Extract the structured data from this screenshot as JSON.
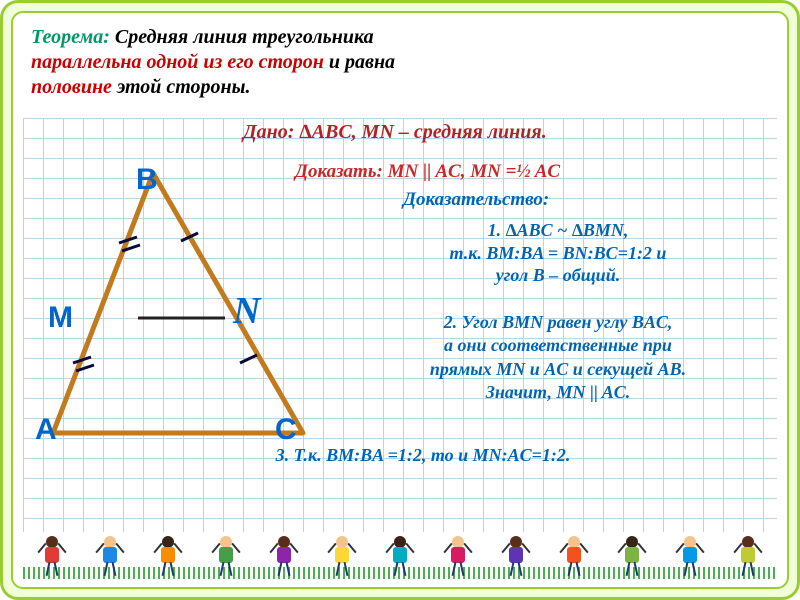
{
  "theorem": {
    "label": "Теорема:",
    "text_part1": "  Средняя линия треугольника ",
    "parallel": "параллельна одной из его сторон",
    "text_part2": " и равна ",
    "half": "половине",
    "text_part3": " этой стороны."
  },
  "given": "Дано: ∆ABC,  MN – средняя линия.",
  "prove": {
    "label": "Доказать: MN || AC,  MN =",
    "half": "½",
    "tail": " AC"
  },
  "proof_label": "Доказательство:",
  "step1": {
    "line1": "1.    ∆ABC ~ ∆BMN,",
    "line2": "т.к.   BM:BA = BN:BC=1:2 и",
    "line3": "угол B – общий."
  },
  "step2": {
    "line1": "2. Угол BMN равен углу BAC,",
    "line2": "а они соответственные при",
    "line3": "прямых  MN и AC и секущей AB.",
    "line4": "Значит, MN || AC."
  },
  "step3": "3. Т.к.   BM:BA =1:2,            то и MN:AC=1:2.",
  "labels": {
    "A": "A",
    "B": "B",
    "C": "C",
    "M": "M",
    "N": "N"
  },
  "triangle": {
    "stroke_color": "#c27a1e",
    "stroke_width": 5,
    "midline_color": "#222222",
    "midline_width": 3,
    "tick_color": "#0a0a3a",
    "points": {
      "A": [
        10,
        270
      ],
      "B": [
        110,
        10
      ],
      "C": [
        260,
        270
      ]
    },
    "midpoints": {
      "M": [
        60,
        140
      ],
      "N": [
        185,
        140
      ]
    }
  },
  "children_colors": [
    {
      "head": "#5a2d1a",
      "body": "#e53935"
    },
    {
      "head": "#f4c38b",
      "body": "#1e88e5"
    },
    {
      "head": "#3a2416",
      "body": "#fb8c00"
    },
    {
      "head": "#f4c38b",
      "body": "#43a047"
    },
    {
      "head": "#5a2d1a",
      "body": "#8e24aa"
    },
    {
      "head": "#f4c38b",
      "body": "#fdd835"
    },
    {
      "head": "#3a2416",
      "body": "#00acc1"
    },
    {
      "head": "#f4c38b",
      "body": "#d81b60"
    },
    {
      "head": "#5a2d1a",
      "body": "#5e35b1"
    },
    {
      "head": "#f4c38b",
      "body": "#f4511e"
    },
    {
      "head": "#3a2416",
      "body": "#7cb342"
    },
    {
      "head": "#f4c38b",
      "body": "#039be5"
    },
    {
      "head": "#5a2d1a",
      "body": "#c0ca33"
    }
  ],
  "colors": {
    "frame_outer": "#9acd32",
    "frame_bg": "#f0ffd8",
    "grid": "#b8d6e6",
    "text_blue": "#0066b3",
    "text_red": "#c62828",
    "label_blue": "#0066cc"
  }
}
